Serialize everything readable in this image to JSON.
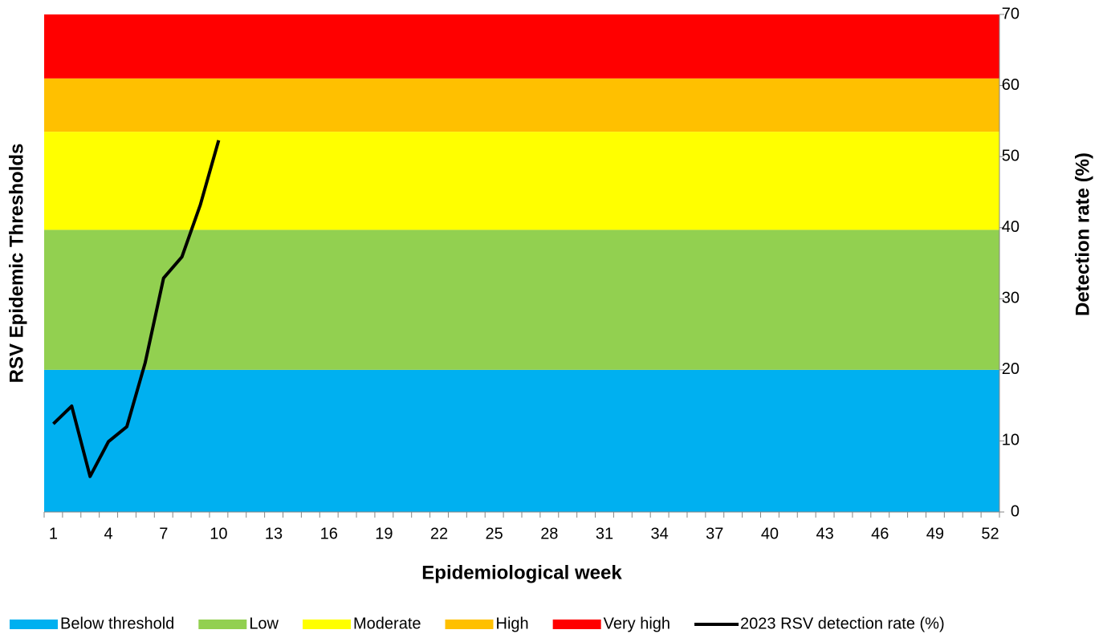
{
  "chart_data": {
    "type": "line",
    "band_axis_label": "RSV Epidemic Thresholds",
    "ylabel": "Detection rate (%)",
    "xlabel": "Epidemiological week",
    "categories": [
      "1",
      null,
      null,
      "4",
      null,
      null,
      "7",
      null,
      null,
      "10",
      null,
      null,
      "13",
      null,
      null,
      "16",
      null,
      null,
      "19",
      null,
      null,
      "22",
      null,
      null,
      "25",
      null,
      null,
      "28",
      null,
      null,
      "31",
      null,
      null,
      "34",
      null,
      null,
      "37",
      null,
      null,
      "40",
      null,
      null,
      "43",
      null,
      null,
      "46",
      null,
      null,
      "49",
      null,
      null,
      "52"
    ],
    "ylim": [
      0,
      70
    ],
    "yticks": [
      0,
      10,
      20,
      30,
      40,
      50,
      60,
      70
    ],
    "bands": [
      {
        "name": "Below threshold",
        "color": "#00b0f0",
        "value": 20
      },
      {
        "name": "Low",
        "color": "#92d050",
        "value": 19.7
      },
      {
        "name": "Moderate",
        "color": "#ffff00",
        "value": 13.8
      },
      {
        "name": "High",
        "color": "#ffc000",
        "value": 7.5
      },
      {
        "name": "Very high",
        "color": "#ff0000",
        "value": 9
      }
    ],
    "series": [
      {
        "name": "2023 RSV detection rate (%)",
        "color": "#000000",
        "values": [
          12.4,
          14.9,
          5.0,
          9.9,
          12.0,
          21.0,
          32.9,
          35.9,
          43.2,
          52.3,
          null,
          null,
          null,
          null,
          null,
          null,
          null,
          null,
          null,
          null,
          null,
          null,
          null,
          null,
          null,
          null,
          null,
          null,
          null,
          null,
          null,
          null,
          null,
          null,
          null,
          null,
          null,
          null,
          null,
          null,
          null,
          null,
          null,
          null,
          null,
          null,
          null,
          null,
          null,
          null,
          null,
          null
        ]
      }
    ]
  }
}
